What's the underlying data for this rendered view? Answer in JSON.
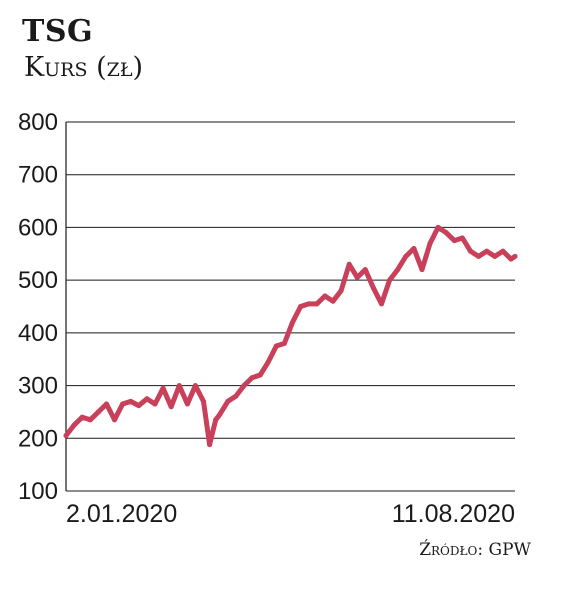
{
  "chart_data": {
    "type": "line",
    "title": "TSG",
    "subtitle": "Kurs (zł)",
    "source": "Źródło: GPW",
    "x_start_label": "2.01.2020",
    "x_end_label": "11.08.2020",
    "ylim": [
      100,
      800
    ],
    "yticks": [
      100,
      200,
      300,
      400,
      500,
      600,
      700,
      800
    ],
    "grid": true,
    "line_color": "#c9405a",
    "series": [
      {
        "x": [
          "2020-01-02",
          "2020-01-06",
          "2020-01-10",
          "2020-01-14",
          "2020-01-18",
          "2020-01-22",
          "2020-01-26",
          "2020-01-30",
          "2020-02-03",
          "2020-02-07",
          "2020-02-11",
          "2020-02-15",
          "2020-02-19",
          "2020-02-23",
          "2020-02-27",
          "2020-03-02",
          "2020-03-06",
          "2020-03-10",
          "2020-03-13",
          "2020-03-16",
          "2020-03-18",
          "2020-03-22",
          "2020-03-26",
          "2020-03-30",
          "2020-04-03",
          "2020-04-07",
          "2020-04-11",
          "2020-04-15",
          "2020-04-19",
          "2020-04-23",
          "2020-04-27",
          "2020-05-01",
          "2020-05-05",
          "2020-05-09",
          "2020-05-13",
          "2020-05-17",
          "2020-05-21",
          "2020-05-25",
          "2020-05-29",
          "2020-06-02",
          "2020-06-06",
          "2020-06-10",
          "2020-06-14",
          "2020-06-18",
          "2020-06-22",
          "2020-06-26",
          "2020-06-30",
          "2020-07-04",
          "2020-07-08",
          "2020-07-12",
          "2020-07-16",
          "2020-07-20",
          "2020-07-24",
          "2020-07-28",
          "2020-08-01",
          "2020-08-05",
          "2020-08-09",
          "2020-08-11"
        ],
        "values": [
          205,
          225,
          240,
          235,
          250,
          265,
          235,
          265,
          270,
          262,
          275,
          265,
          295,
          260,
          300,
          265,
          300,
          270,
          188,
          235,
          245,
          270,
          280,
          300,
          315,
          320,
          345,
          375,
          380,
          420,
          450,
          455,
          455,
          470,
          460,
          480,
          530,
          505,
          520,
          485,
          455,
          500,
          520,
          545,
          560,
          520,
          570,
          600,
          590,
          575,
          580,
          555,
          545,
          555,
          545,
          555,
          540,
          545
        ]
      }
    ]
  }
}
